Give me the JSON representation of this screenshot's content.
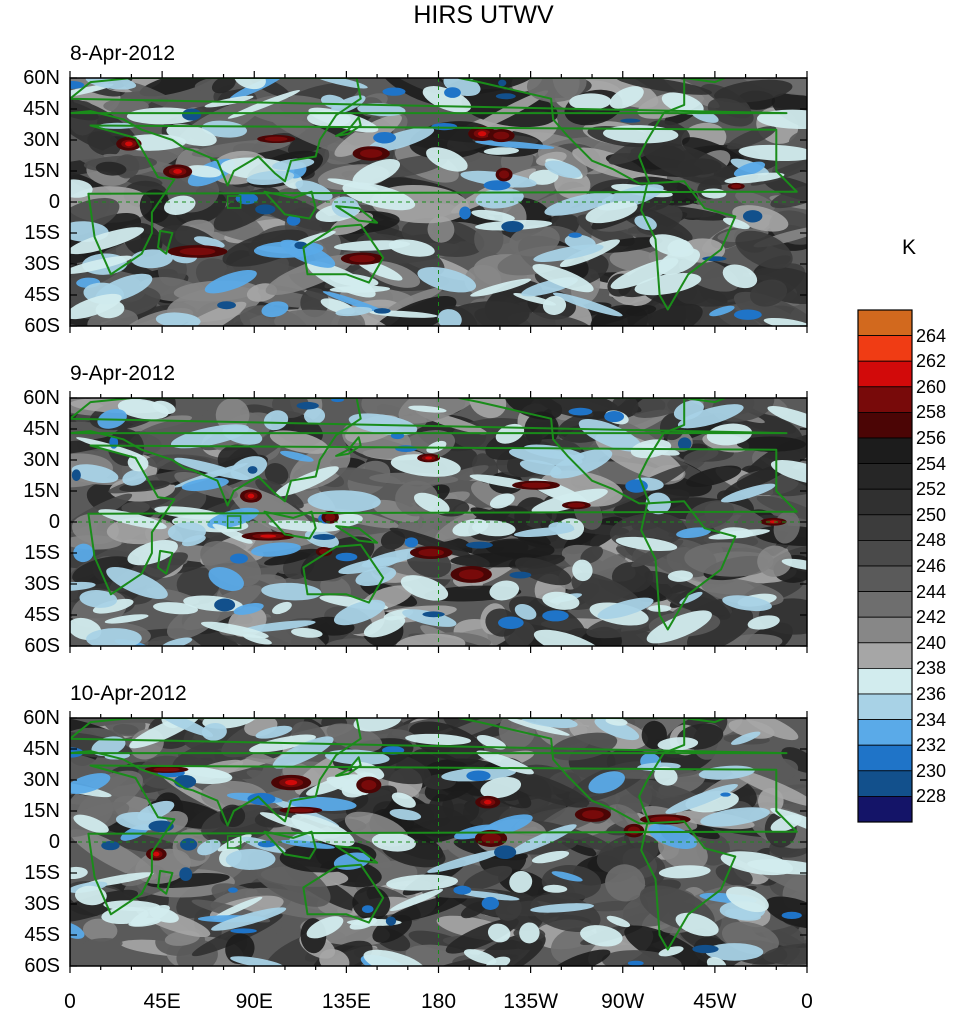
{
  "title": "HIRS UTWV",
  "panels": [
    {
      "date": "8-Apr-2012",
      "seed": 11
    },
    {
      "date": "9-Apr-2012",
      "seed": 29
    },
    {
      "date": "10-Apr-2012",
      "seed": 47
    }
  ],
  "lat_ticks": [
    "60N",
    "45N",
    "30N",
    "15N",
    "0",
    "15S",
    "30S",
    "45S",
    "60S"
  ],
  "lon_ticks": [
    "0",
    "45E",
    "90E",
    "135E",
    "180",
    "135W",
    "90W",
    "45W",
    "0"
  ],
  "colorbar": {
    "unit": "K",
    "labels": [
      "264",
      "262",
      "260",
      "258",
      "256",
      "254",
      "252",
      "250",
      "248",
      "246",
      "244",
      "242",
      "240",
      "238",
      "236",
      "234",
      "232",
      "230",
      "228"
    ],
    "colors": [
      "#d2691e",
      "#f03c14",
      "#d20a0a",
      "#780a0a",
      "#4b0505",
      "#1c1c1c",
      "#262626",
      "#303030",
      "#3c3c3c",
      "#4a4a4a",
      "#5a5a5a",
      "#6e6e6e",
      "#878787",
      "#a6a6a6",
      "#d2ecee",
      "#a8d2e6",
      "#5aaae8",
      "#1f74c8",
      "#12508c",
      "#141468"
    ]
  },
  "coastline_color": "#1a8c1a"
}
